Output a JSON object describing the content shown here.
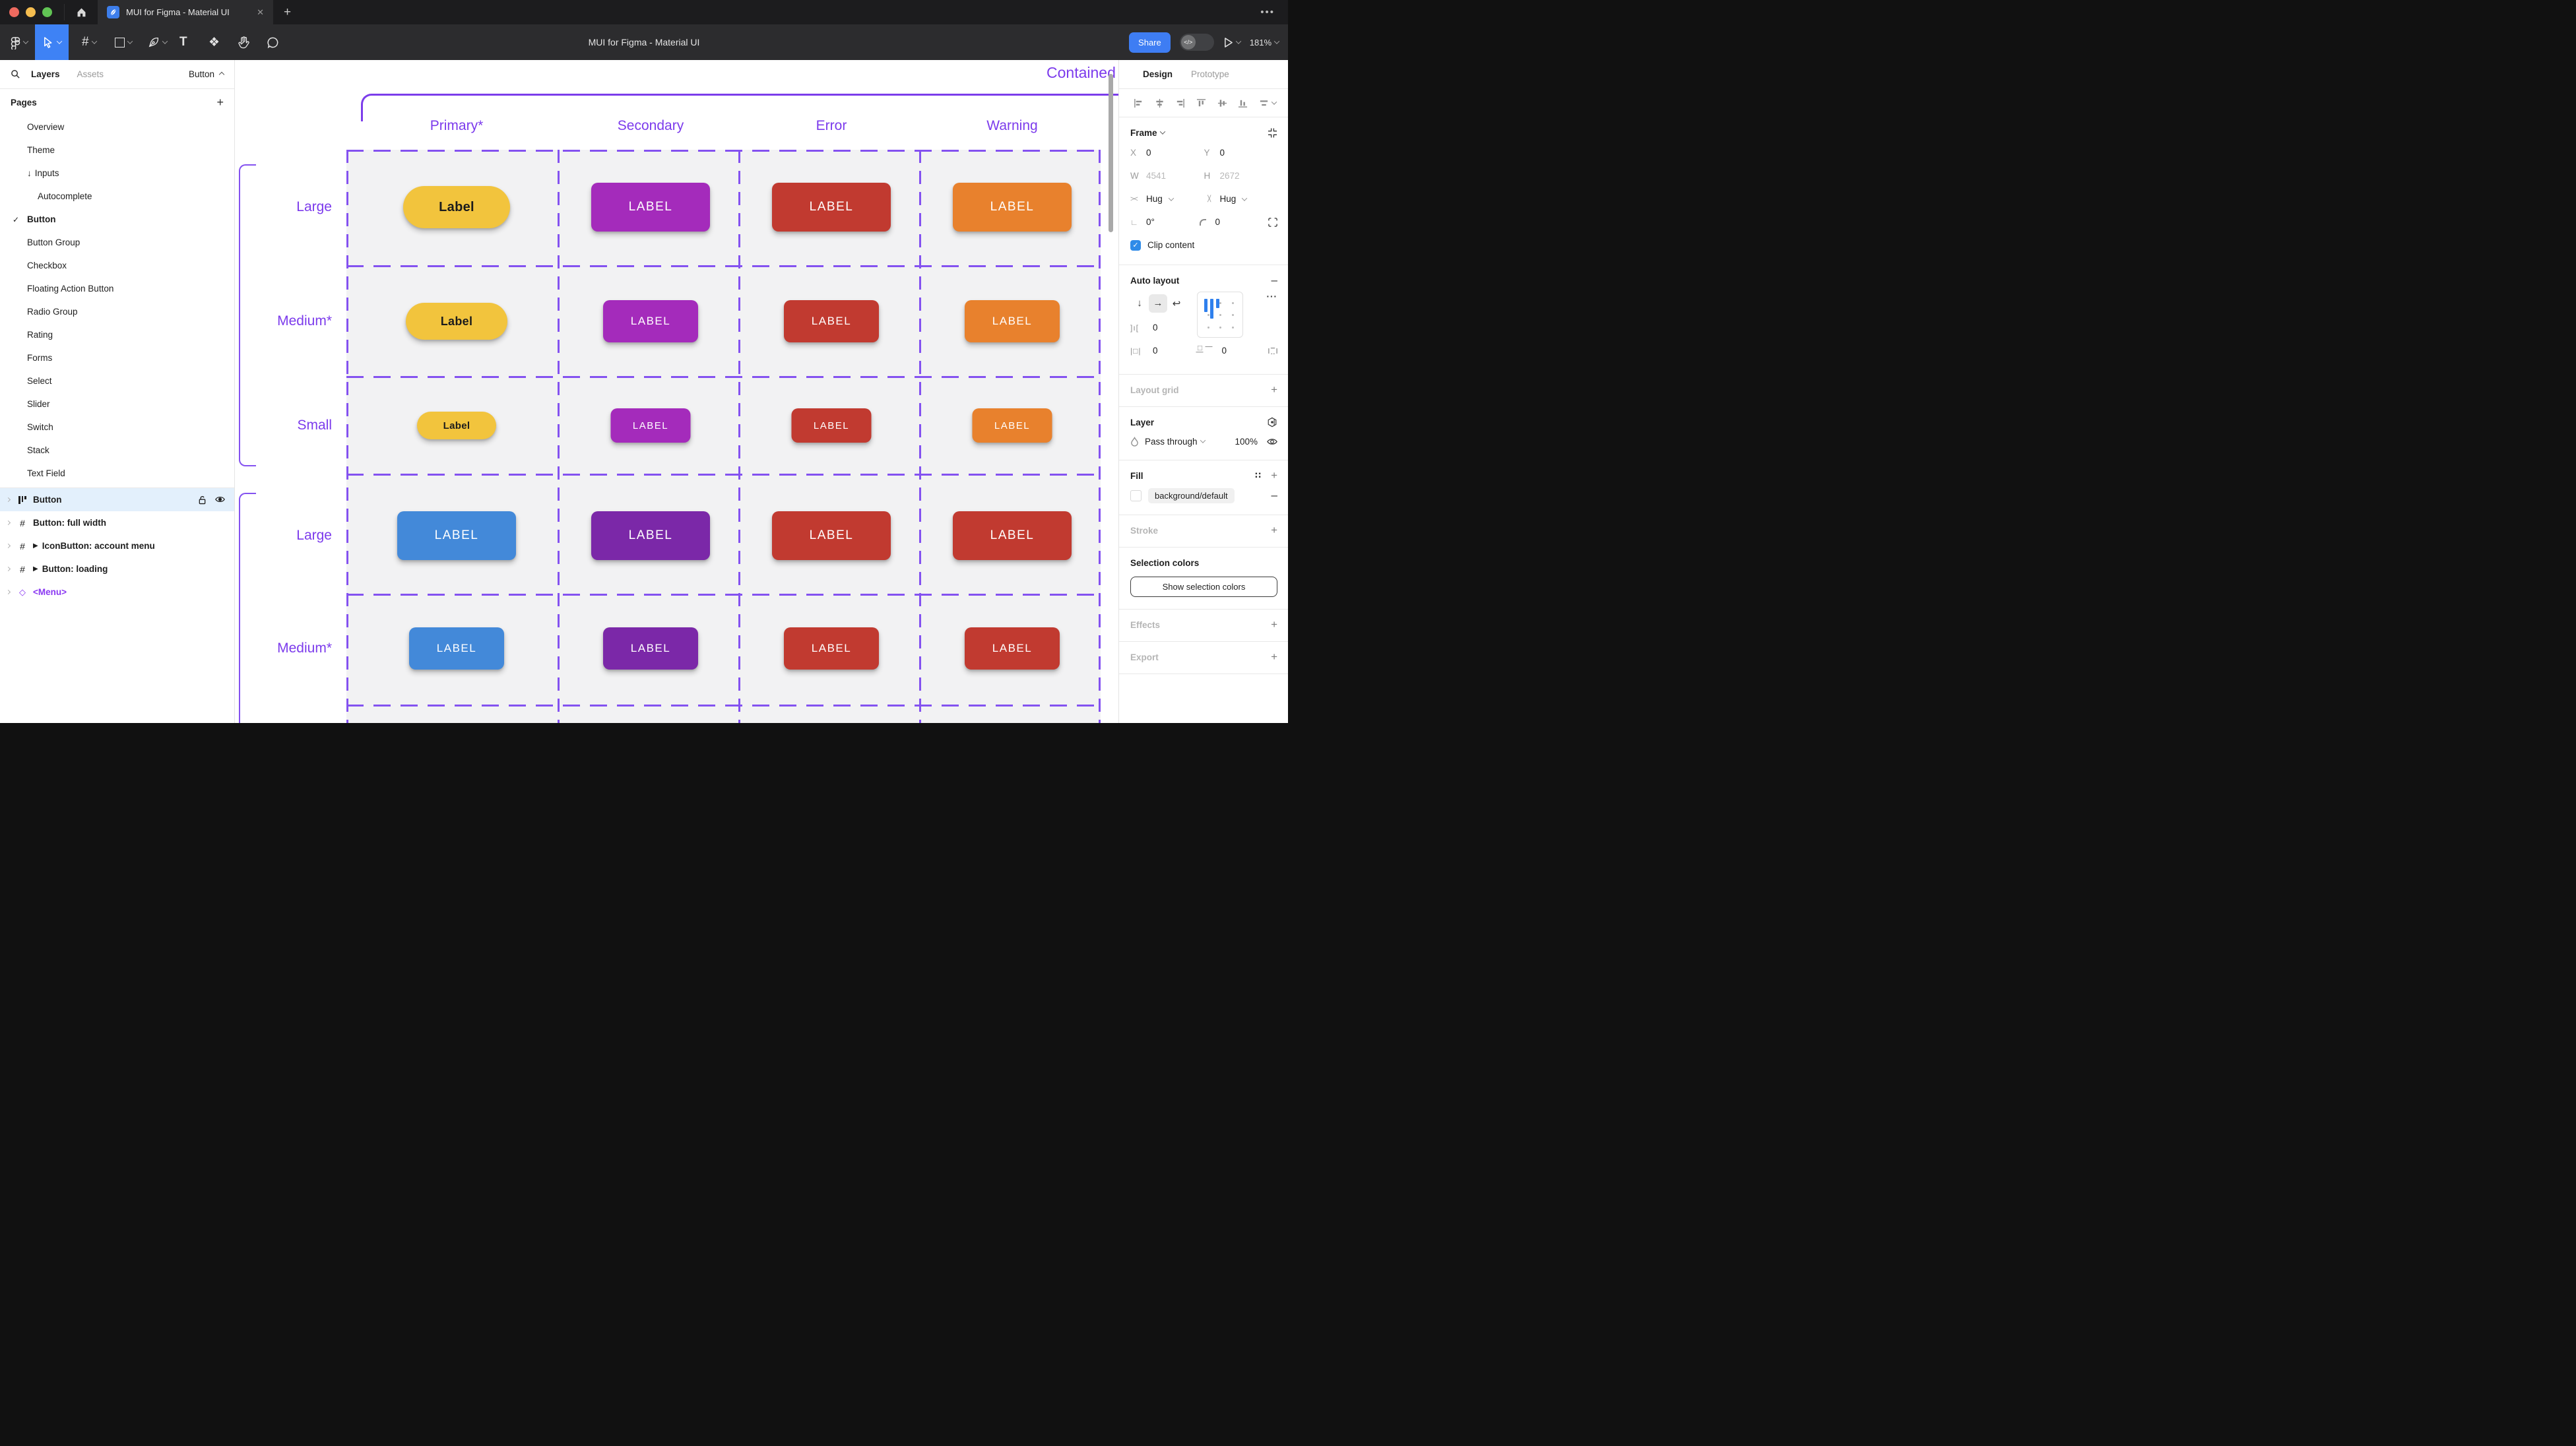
{
  "window": {
    "tab_title": "MUI for Figma - Material UI",
    "new_tab": "+",
    "close_tab": "✕",
    "more": "•••"
  },
  "toolbar": {
    "title": "MUI for Figma - Material UI",
    "share_label": "Share",
    "zoom_level": "181%",
    "tools": [
      "figma-menu",
      "move",
      "frame",
      "shape",
      "pen",
      "text",
      "actions",
      "hand",
      "comment"
    ]
  },
  "sidebar": {
    "tabs": {
      "layers": "Layers",
      "assets": "Assets"
    },
    "page_selector": "Button",
    "pages_header": "Pages",
    "pages": [
      {
        "label": "Overview"
      },
      {
        "label": "Theme"
      },
      {
        "label": "Inputs",
        "prefix": "down-arrow"
      },
      {
        "label": "Autocomplete",
        "indent": 2
      },
      {
        "label": "Button",
        "checked": true,
        "bold": true
      },
      {
        "label": "Button Group"
      },
      {
        "label": "Checkbox"
      },
      {
        "label": "Floating Action Button"
      },
      {
        "label": "Radio Group"
      },
      {
        "label": "Rating"
      },
      {
        "label": "Forms"
      },
      {
        "label": "Select"
      },
      {
        "label": "Slider"
      },
      {
        "label": "Switch"
      },
      {
        "label": "Stack"
      },
      {
        "label": "Text Field"
      }
    ],
    "layers": [
      {
        "label": "Button",
        "icon": "auto-layout",
        "selected": true,
        "lock": "unlocked",
        "visible": true
      },
      {
        "label": "Button: full width",
        "icon": "frame"
      },
      {
        "label": "IconButton: account menu",
        "icon": "frame",
        "play": true
      },
      {
        "label": "Button: loading",
        "icon": "frame",
        "play": true
      },
      {
        "label": "<Menu>",
        "icon": "instance",
        "purple": true
      }
    ]
  },
  "canvas": {
    "frame_title": "Contained",
    "columns": [
      "Primary*",
      "Secondary",
      "Error",
      "Warning"
    ],
    "row_groups": [
      {
        "rows": [
          {
            "label": "Large",
            "size": "large",
            "buttons": [
              {
                "shape": "pill",
                "fill": "#F2C43D",
                "text": "Label",
                "text_color": "#1C1C1C"
              },
              {
                "shape": "rect",
                "fill": "#A42BBB",
                "text": "LABEL"
              },
              {
                "shape": "rect",
                "fill": "#C13A30",
                "text": "LABEL"
              },
              {
                "shape": "rect",
                "fill": "#E8812D",
                "text": "LABEL"
              }
            ]
          },
          {
            "label": "Medium*",
            "size": "medium",
            "buttons": [
              {
                "shape": "pill",
                "fill": "#F2C43D",
                "text": "Label",
                "text_color": "#1C1C1C"
              },
              {
                "shape": "rect",
                "fill": "#A42BBB",
                "text": "LABEL"
              },
              {
                "shape": "rect",
                "fill": "#C13A30",
                "text": "LABEL"
              },
              {
                "shape": "rect",
                "fill": "#E8812D",
                "text": "LABEL"
              }
            ]
          },
          {
            "label": "Small",
            "size": "small",
            "buttons": [
              {
                "shape": "pill",
                "fill": "#F2C43D",
                "text": "Label",
                "text_color": "#1C1C1C"
              },
              {
                "shape": "rect",
                "fill": "#A42BBB",
                "text": "LABEL"
              },
              {
                "shape": "rect",
                "fill": "#C13A30",
                "text": "LABEL"
              },
              {
                "shape": "rect",
                "fill": "#E8812D",
                "text": "LABEL"
              }
            ]
          }
        ]
      },
      {
        "rows": [
          {
            "label": "Large",
            "size": "large",
            "buttons": [
              {
                "shape": "rect",
                "fill": "#4389D9",
                "text": "LABEL"
              },
              {
                "shape": "rect",
                "fill": "#7B28A8",
                "text": "LABEL"
              },
              {
                "shape": "rect",
                "fill": "#C13A30",
                "text": "LABEL"
              },
              {
                "shape": "rect",
                "fill": "#C13A30",
                "text": "LABEL"
              }
            ]
          },
          {
            "label": "Medium*",
            "size": "medium",
            "buttons": [
              {
                "shape": "rect",
                "fill": "#4389D9",
                "text": "LABEL"
              },
              {
                "shape": "rect",
                "fill": "#7B28A8",
                "text": "LABEL"
              },
              {
                "shape": "rect",
                "fill": "#C13A30",
                "text": "LABEL"
              },
              {
                "shape": "rect",
                "fill": "#C13A30",
                "text": "LABEL"
              }
            ]
          }
        ]
      }
    ]
  },
  "inspector": {
    "tabs": {
      "design": "Design",
      "prototype": "Prototype"
    },
    "frame": {
      "title": "Frame",
      "x_label": "X",
      "x_value": "0",
      "y_label": "Y",
      "y_value": "0",
      "w_label": "W",
      "w_value": "4541",
      "h_label": "H",
      "h_value": "2672",
      "hug_h": "Hug",
      "hug_v": "Hug",
      "rotation": "0°",
      "corner_radius": "0",
      "clip_label": "Clip content",
      "clip_checked": true
    },
    "auto_layout": {
      "title": "Auto layout",
      "gap": "0",
      "padding_h": "0",
      "padding_v": "0",
      "direction": "horizontal"
    },
    "layout_grid": {
      "title": "Layout grid"
    },
    "layer": {
      "title": "Layer",
      "blend_mode": "Pass through",
      "opacity": "100%"
    },
    "fill": {
      "title": "Fill",
      "style_name": "background/default",
      "swatch_color": "#FFFFFF"
    },
    "stroke": {
      "title": "Stroke"
    },
    "selection_colors": {
      "title": "Selection colors",
      "button_label": "Show selection colors"
    },
    "effects": {
      "title": "Effects"
    },
    "export": {
      "title": "Export"
    }
  },
  "colors": {
    "accent_blue": "#3E82F5",
    "selection_purple": "#7C3DEB",
    "dashed_purple": "#8452F0",
    "cell_background": "#F2F2F3",
    "selected_layer_row": "#E3F0FC",
    "traffic_red": "#EE6A5F",
    "traffic_yellow": "#F5BD4F",
    "traffic_green": "#61C454"
  }
}
